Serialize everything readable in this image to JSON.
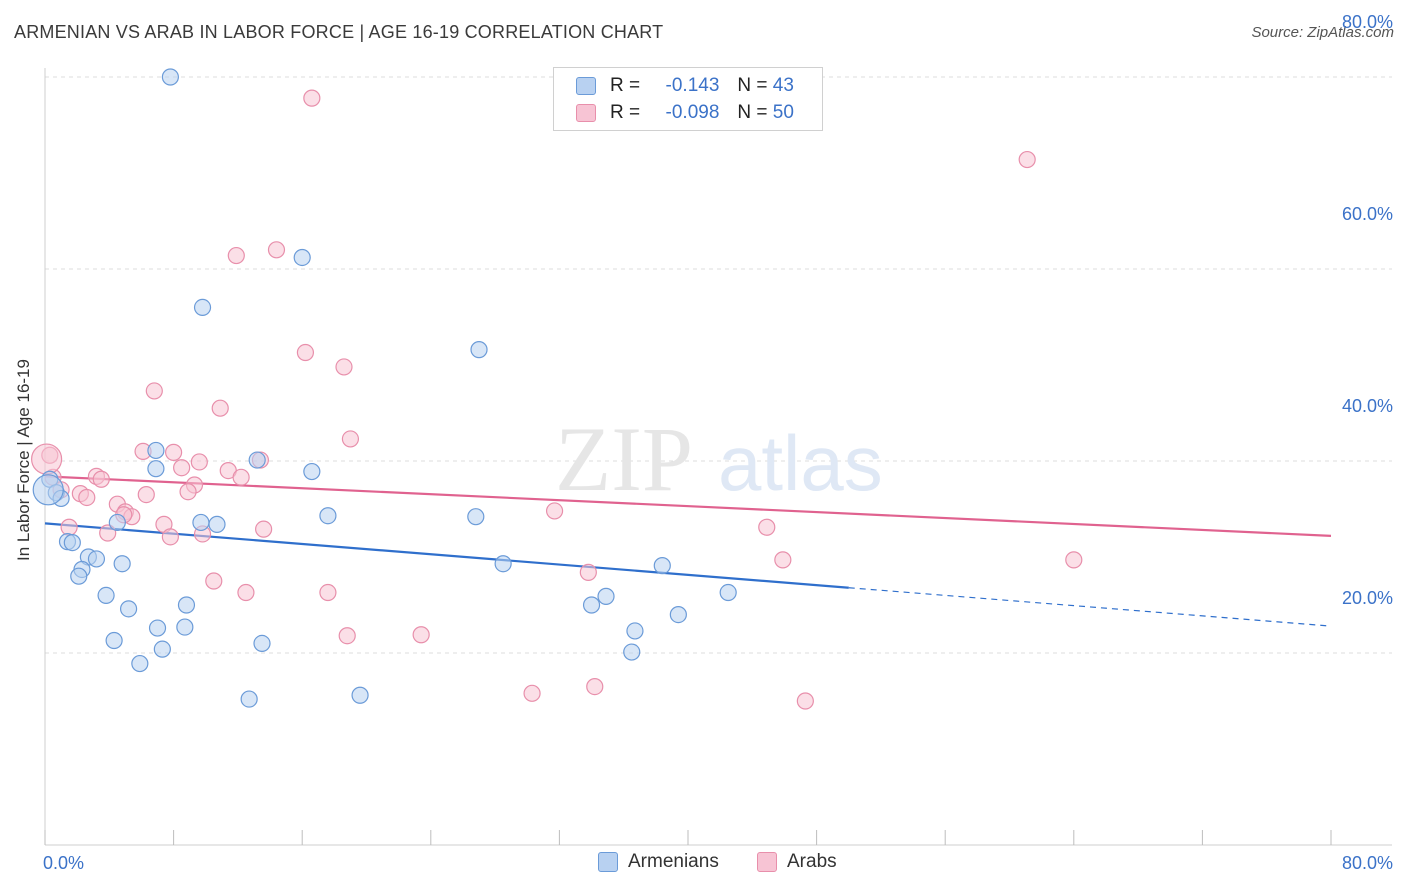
{
  "header": {
    "title": "ARMENIAN VS ARAB IN LABOR FORCE | AGE 16-19 CORRELATION CHART",
    "source": "Source: ZipAtlas.com"
  },
  "colors": {
    "armenians_fill": "#b8d1f1",
    "armenians_stroke": "#6b9bd8",
    "armenians_line": "#2f6fcc",
    "arabs_fill": "#f7c4d4",
    "arabs_stroke": "#e88fab",
    "arabs_line": "#e0628f",
    "axis_label": "#3b72c8"
  },
  "legend": {
    "armenians": {
      "r_label": "R =",
      "r_value": "-0.143",
      "n_label": "N =",
      "n_value": "43"
    },
    "arabs": {
      "r_label": "R =",
      "r_value": "-0.098",
      "n_label": "N =",
      "n_value": "50"
    }
  },
  "bottom_legend": {
    "armenians": "Armenians",
    "arabs": "Arabs"
  },
  "chart_data": {
    "type": "scatter",
    "title": "ARMENIAN VS ARAB IN LABOR FORCE | AGE 16-19 CORRELATION CHART",
    "xlabel": "",
    "ylabel": "In Labor Force | Age 16-19",
    "xlim": [
      0,
      80
    ],
    "ylim": [
      0,
      82
    ],
    "x_tick_labels": [
      "0.0%",
      "80.0%"
    ],
    "y_ticks": [
      20,
      40,
      60,
      80
    ],
    "y_tick_labels": [
      "20.0%",
      "40.0%",
      "60.0%",
      "80.0%"
    ],
    "grid": true,
    "watermark": "ZIPatlas",
    "series": [
      {
        "name": "Armenians",
        "r": -0.143,
        "n": 43,
        "trend": {
          "x0": 0,
          "y0": 33.5,
          "x1": 50,
          "y1": 26.8,
          "dash_x1": 80,
          "dash_y1": 22.8
        },
        "points": [
          [
            7.8,
            80.0
          ],
          [
            16.0,
            61.2
          ],
          [
            9.8,
            56.0
          ],
          [
            27.0,
            51.6
          ],
          [
            0.3,
            38.1
          ],
          [
            0.7,
            36.7
          ],
          [
            1.0,
            36.1
          ],
          [
            6.9,
            41.1
          ],
          [
            6.9,
            39.2
          ],
          [
            13.2,
            40.1
          ],
          [
            16.6,
            38.9
          ],
          [
            17.6,
            34.3
          ],
          [
            26.8,
            34.2
          ],
          [
            9.7,
            33.6
          ],
          [
            10.7,
            33.4
          ],
          [
            4.5,
            33.6
          ],
          [
            1.4,
            31.6
          ],
          [
            1.7,
            31.5
          ],
          [
            2.7,
            30.0
          ],
          [
            3.2,
            29.8
          ],
          [
            4.8,
            29.3
          ],
          [
            2.3,
            28.7
          ],
          [
            2.1,
            28.0
          ],
          [
            28.5,
            29.3
          ],
          [
            38.4,
            29.1
          ],
          [
            42.5,
            26.3
          ],
          [
            3.8,
            26.0
          ],
          [
            34.9,
            25.9
          ],
          [
            34.0,
            25.0
          ],
          [
            5.2,
            24.6
          ],
          [
            8.8,
            25.0
          ],
          [
            39.4,
            24.0
          ],
          [
            7.0,
            22.6
          ],
          [
            8.7,
            22.7
          ],
          [
            36.7,
            22.3
          ],
          [
            4.3,
            21.3
          ],
          [
            13.5,
            21.0
          ],
          [
            7.3,
            20.4
          ],
          [
            36.5,
            20.1
          ],
          [
            5.9,
            18.9
          ],
          [
            12.7,
            15.2
          ],
          [
            19.6,
            15.6
          ],
          [
            0.2,
            37.0
          ]
        ]
      },
      {
        "name": "Arabs",
        "r": -0.098,
        "n": 50,
        "trend": {
          "x0": 0,
          "y0": 38.4,
          "x1": 80,
          "y1": 32.2
        },
        "points": [
          [
            16.6,
            77.8
          ],
          [
            61.1,
            71.4
          ],
          [
            14.4,
            62.0
          ],
          [
            11.9,
            61.4
          ],
          [
            16.2,
            51.3
          ],
          [
            18.6,
            49.8
          ],
          [
            6.8,
            47.3
          ],
          [
            10.9,
            45.5
          ],
          [
            19.0,
            42.3
          ],
          [
            0.3,
            40.6
          ],
          [
            6.1,
            41.0
          ],
          [
            8.0,
            40.9
          ],
          [
            9.6,
            39.9
          ],
          [
            13.4,
            40.1
          ],
          [
            8.5,
            39.3
          ],
          [
            11.4,
            39.0
          ],
          [
            12.2,
            38.3
          ],
          [
            3.2,
            38.4
          ],
          [
            3.5,
            38.1
          ],
          [
            0.5,
            38.3
          ],
          [
            9.3,
            37.5
          ],
          [
            1.0,
            37.0
          ],
          [
            8.9,
            36.8
          ],
          [
            2.2,
            36.6
          ],
          [
            2.6,
            36.2
          ],
          [
            6.3,
            36.5
          ],
          [
            4.5,
            35.5
          ],
          [
            5.0,
            34.7
          ],
          [
            5.4,
            34.2
          ],
          [
            31.7,
            34.8
          ],
          [
            4.9,
            34.4
          ],
          [
            7.4,
            33.4
          ],
          [
            1.5,
            33.1
          ],
          [
            13.6,
            32.9
          ],
          [
            9.8,
            32.4
          ],
          [
            3.9,
            32.5
          ],
          [
            7.8,
            32.1
          ],
          [
            44.9,
            33.1
          ],
          [
            45.9,
            29.7
          ],
          [
            64.0,
            29.7
          ],
          [
            33.8,
            28.4
          ],
          [
            10.5,
            27.5
          ],
          [
            12.5,
            26.3
          ],
          [
            17.6,
            26.3
          ],
          [
            18.8,
            21.8
          ],
          [
            23.4,
            21.9
          ],
          [
            30.3,
            15.8
          ],
          [
            34.2,
            16.5
          ],
          [
            47.3,
            15.0
          ],
          [
            0.1,
            40.2
          ]
        ]
      }
    ]
  }
}
